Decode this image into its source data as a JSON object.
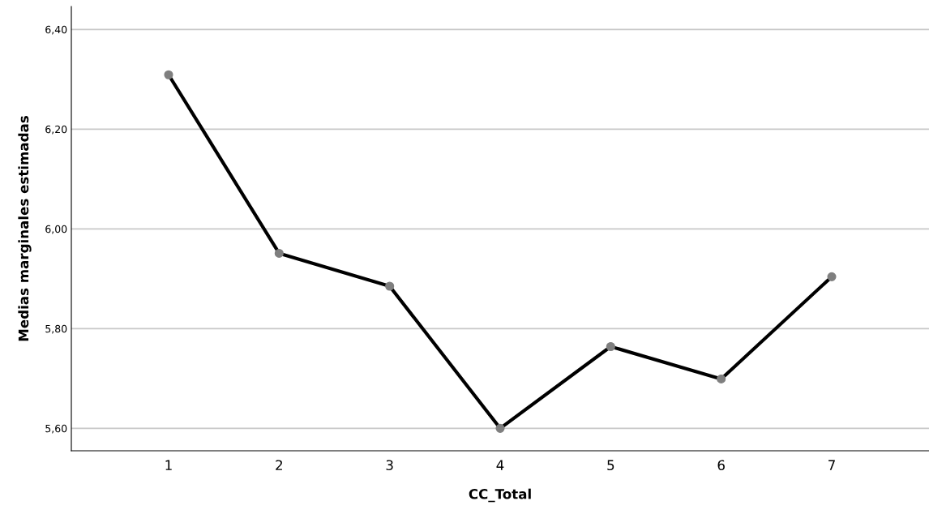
{
  "chart_data": {
    "type": "line",
    "xlabel": "CC_Total",
    "ylabel": "Medias marginales estimadas",
    "categories": [
      "1",
      "2",
      "3",
      "4",
      "5",
      "6",
      "7"
    ],
    "series": [
      {
        "color": "#000000",
        "values": [
          6.309,
          5.951,
          5.885,
          5.6,
          5.764,
          5.699,
          5.904
        ]
      }
    ],
    "ylim": [
      5.555,
      6.446
    ],
    "yticks": [
      {
        "value": 5.6,
        "label": "5,60"
      },
      {
        "value": 5.8,
        "label": "5,80"
      },
      {
        "value": 6.0,
        "label": "6,00"
      },
      {
        "value": 6.2,
        "label": "6,20"
      },
      {
        "value": 6.4,
        "label": "6,40"
      }
    ],
    "grid": "y",
    "marker": "circle",
    "line_style": "solid",
    "legend": false
  }
}
